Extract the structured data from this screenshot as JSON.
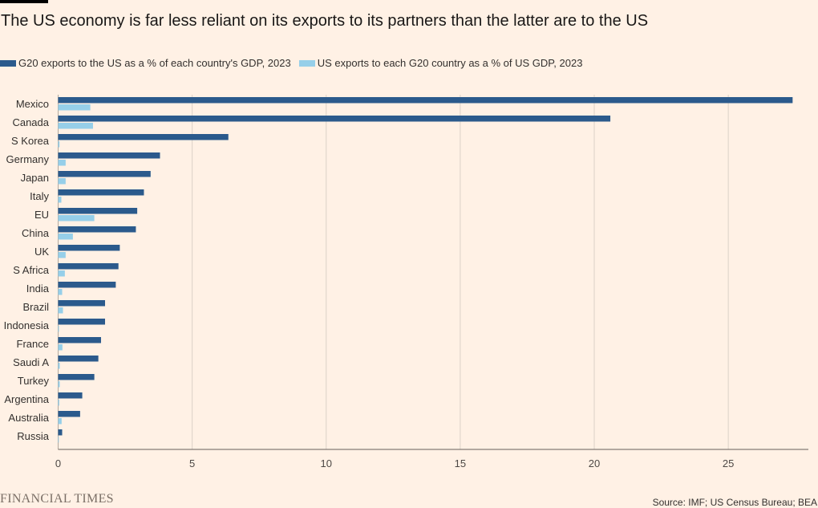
{
  "header": {
    "title": "The US economy is far less reliant on its exports to its partners than the latter are to the US"
  },
  "legend": {
    "items": [
      {
        "label": "G20 exports to the US as a % of each country's GDP, 2023",
        "color": "#2b5a8c"
      },
      {
        "label": "US exports to each G20 country as a % of US GDP, 2023",
        "color": "#96cfe9"
      }
    ]
  },
  "chart_data": {
    "type": "bar",
    "orientation": "horizontal",
    "categories": [
      "Mexico",
      "Canada",
      "S Korea",
      "Germany",
      "Japan",
      "Italy",
      "EU",
      "China",
      "UK",
      "S Africa",
      "India",
      "Brazil",
      "Indonesia",
      "France",
      "Saudi A",
      "Turkey",
      "Argentina",
      "Australia",
      "Russia"
    ],
    "series": [
      {
        "name": "G20 exports to the US as a % of each country's GDP, 2023",
        "color": "#2b5a8c",
        "values": [
          27.4,
          20.6,
          6.35,
          3.8,
          3.45,
          3.2,
          2.95,
          2.9,
          2.3,
          2.25,
          2.15,
          1.75,
          1.75,
          1.6,
          1.5,
          1.35,
          0.9,
          0.82,
          0.15
        ]
      },
      {
        "name": "US exports to each G20 country as a % of US GDP, 2023",
        "color": "#96cfe9",
        "values": [
          1.2,
          1.3,
          0.05,
          0.28,
          0.28,
          0.12,
          1.35,
          0.55,
          0.28,
          0.25,
          0.15,
          0.18,
          0.03,
          0.16,
          0.06,
          0.06,
          0.04,
          0.13,
          0.01
        ]
      }
    ],
    "xlim": [
      0,
      28
    ],
    "xticks": [
      0,
      5,
      10,
      15,
      20,
      25
    ],
    "grid": true,
    "legend_position": "top-left"
  },
  "footer": {
    "logo": "FINANCIAL TIMES",
    "source": "Source: IMF; US Census Bureau; BEA"
  }
}
